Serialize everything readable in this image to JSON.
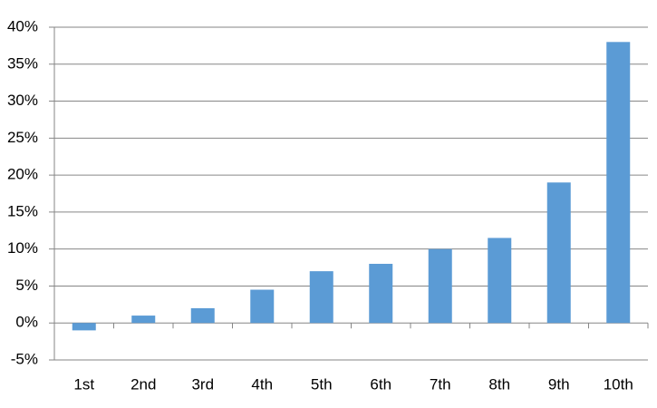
{
  "chart_data": {
    "type": "bar",
    "categories": [
      "1st",
      "2nd",
      "3rd",
      "4th",
      "5th",
      "6th",
      "7th",
      "8th",
      "9th",
      "10th"
    ],
    "values": [
      -1,
      1,
      2,
      4.5,
      7,
      8,
      10,
      11.5,
      19,
      38
    ],
    "color": "#5b9bd5",
    "ylim": [
      -5,
      40
    ],
    "yticks": [
      {
        "value": -5,
        "label": "-5%"
      },
      {
        "value": 0,
        "label": "0%"
      },
      {
        "value": 5,
        "label": "5%"
      },
      {
        "value": 10,
        "label": "10%"
      },
      {
        "value": 15,
        "label": "15%"
      },
      {
        "value": 20,
        "label": "20%"
      },
      {
        "value": 25,
        "label": "25%"
      },
      {
        "value": 30,
        "label": "30%"
      },
      {
        "value": 35,
        "label": "35%"
      },
      {
        "value": 40,
        "label": "40%"
      }
    ],
    "grid": true
  }
}
